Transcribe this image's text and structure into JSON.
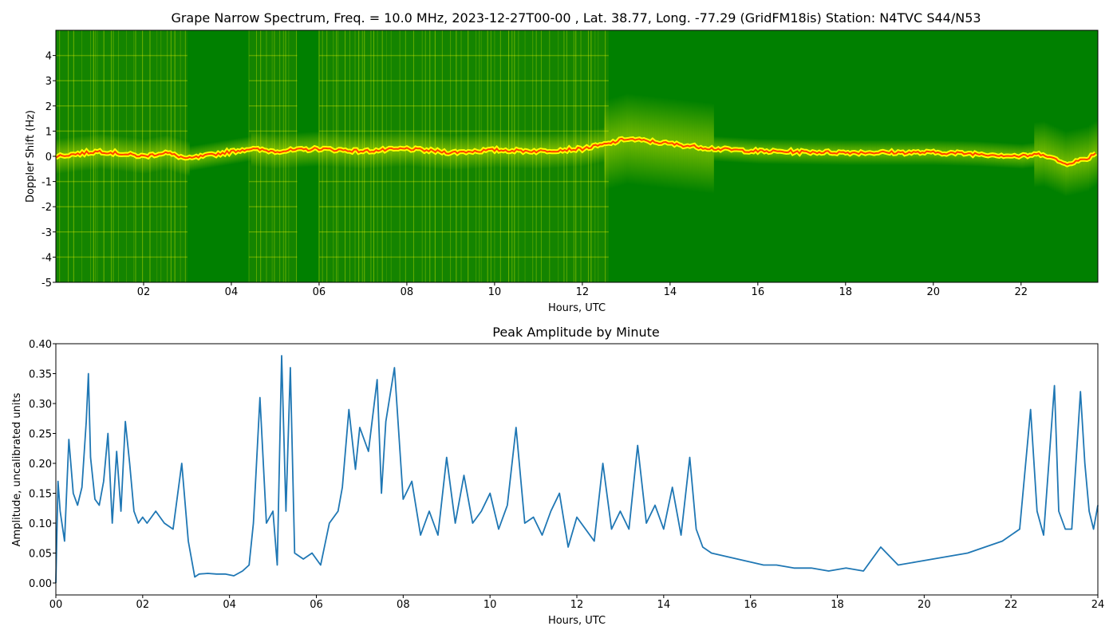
{
  "chart_data": [
    {
      "type": "heatmap",
      "title": "Grape Narrow Spectrum, Freq. = 10.0 MHz, 2023-12-27T00-00 , Lat.  38.77, Long. -77.29 (GridFM18is) Station: N4TVC S44/N53",
      "xlabel": "Hours, UTC",
      "ylabel": "Doppler Shift (Hz)",
      "xlim": [
        0,
        23.75
      ],
      "ylim": [
        -5,
        5
      ],
      "x_ticks": [
        "02",
        "04",
        "06",
        "08",
        "10",
        "12",
        "14",
        "16",
        "18",
        "20",
        "22"
      ],
      "x_tick_values": [
        2,
        4,
        6,
        8,
        10,
        12,
        14,
        16,
        18,
        20,
        22
      ],
      "y_ticks": [
        "-5",
        "-4",
        "-3",
        "-2",
        "-1",
        "0",
        "1",
        "2",
        "3",
        "4"
      ],
      "y_tick_values": [
        -5,
        -4,
        -3,
        -2,
        -1,
        0,
        1,
        2,
        3,
        4
      ],
      "colors": {
        "background": "#008000",
        "mid": "#ffff00",
        "peak": "#ff0000"
      },
      "carrier_trace": {
        "hours": [
          0,
          0.5,
          1,
          1.5,
          2,
          2.5,
          3,
          4.4,
          5,
          6,
          7,
          8,
          9,
          10,
          11,
          12,
          12.6,
          13,
          13.5,
          14,
          14.5,
          15,
          16,
          18,
          20,
          21,
          22,
          22.5,
          23,
          23.5,
          23.75
        ],
        "hz": [
          0.0,
          0.1,
          0.2,
          0.1,
          0.0,
          0.15,
          -0.1,
          0.3,
          0.2,
          0.3,
          0.2,
          0.3,
          0.15,
          0.25,
          0.2,
          0.3,
          0.5,
          0.7,
          0.6,
          0.5,
          0.4,
          0.3,
          0.2,
          0.15,
          0.15,
          0.1,
          0.0,
          0.1,
          -0.3,
          -0.1,
          0.2
        ]
      },
      "active_bands_hours": [
        [
          0,
          3.0
        ],
        [
          4.4,
          5.5
        ],
        [
          6.0,
          12.6
        ]
      ]
    },
    {
      "type": "line",
      "title": "Peak Amplitude by Minute",
      "xlabel": "Hours, UTC",
      "ylabel": "Amplitude, uncalibrated units",
      "xlim": [
        0,
        24
      ],
      "ylim": [
        -0.02,
        0.4
      ],
      "x_ticks": [
        "00",
        "02",
        "04",
        "06",
        "08",
        "10",
        "12",
        "14",
        "16",
        "18",
        "20",
        "22",
        "24"
      ],
      "x_tick_values": [
        0,
        2,
        4,
        6,
        8,
        10,
        12,
        14,
        16,
        18,
        20,
        22,
        24
      ],
      "y_ticks": [
        "0.00",
        "0.05",
        "0.10",
        "0.15",
        "0.20",
        "0.25",
        "0.30",
        "0.35",
        "0.40"
      ],
      "y_tick_values": [
        0,
        0.05,
        0.1,
        0.15,
        0.2,
        0.25,
        0.3,
        0.35,
        0.4
      ],
      "line_color": "#1f77b4",
      "series": [
        {
          "x": [
            0,
            0.05,
            0.1,
            0.2,
            0.3,
            0.4,
            0.5,
            0.6,
            0.7,
            0.75,
            0.8,
            0.9,
            1.0,
            1.1,
            1.2,
            1.3,
            1.4,
            1.5,
            1.6,
            1.7,
            1.8,
            1.9,
            2.0,
            2.1,
            2.3,
            2.5,
            2.7,
            2.9,
            3.05,
            3.2,
            3.3,
            3.5,
            3.7,
            3.9,
            4.1,
            4.3,
            4.45,
            4.55,
            4.7,
            4.85,
            5.0,
            5.1,
            5.2,
            5.3,
            5.4,
            5.5,
            5.7,
            5.9,
            6.1,
            6.3,
            6.5,
            6.6,
            6.75,
            6.9,
            7.0,
            7.2,
            7.4,
            7.5,
            7.6,
            7.8,
            8.0,
            8.2,
            8.4,
            8.6,
            8.8,
            9.0,
            9.2,
            9.4,
            9.6,
            9.8,
            10.0,
            10.2,
            10.4,
            10.6,
            10.8,
            11.0,
            11.2,
            11.4,
            11.6,
            11.8,
            12.0,
            12.2,
            12.4,
            12.6,
            12.8,
            13.0,
            13.2,
            13.4,
            13.6,
            13.8,
            14.0,
            14.2,
            14.4,
            14.6,
            14.75,
            14.9,
            15.1,
            15.4,
            15.7,
            16.0,
            16.3,
            16.6,
            17.0,
            17.4,
            17.8,
            18.2,
            18.6,
            19.0,
            19.4,
            19.8,
            20.2,
            20.6,
            21.0,
            21.4,
            21.8,
            22.2,
            22.45,
            22.6,
            22.75,
            23.0,
            23.1,
            23.25,
            23.4,
            23.6,
            23.7,
            23.8,
            23.9,
            24.0
          ],
          "y": [
            0.0,
            0.17,
            0.12,
            0.07,
            0.24,
            0.15,
            0.13,
            0.16,
            0.27,
            0.35,
            0.21,
            0.14,
            0.13,
            0.17,
            0.25,
            0.1,
            0.22,
            0.12,
            0.27,
            0.2,
            0.12,
            0.1,
            0.11,
            0.1,
            0.12,
            0.1,
            0.09,
            0.2,
            0.07,
            0.01,
            0.015,
            0.016,
            0.015,
            0.015,
            0.012,
            0.02,
            0.03,
            0.1,
            0.31,
            0.1,
            0.12,
            0.03,
            0.38,
            0.12,
            0.36,
            0.05,
            0.04,
            0.05,
            0.03,
            0.1,
            0.12,
            0.16,
            0.29,
            0.19,
            0.26,
            0.22,
            0.34,
            0.15,
            0.27,
            0.36,
            0.14,
            0.17,
            0.08,
            0.12,
            0.08,
            0.21,
            0.1,
            0.18,
            0.1,
            0.12,
            0.15,
            0.09,
            0.13,
            0.26,
            0.1,
            0.11,
            0.08,
            0.12,
            0.15,
            0.06,
            0.11,
            0.09,
            0.07,
            0.2,
            0.09,
            0.12,
            0.09,
            0.23,
            0.1,
            0.13,
            0.09,
            0.16,
            0.08,
            0.21,
            0.09,
            0.06,
            0.05,
            0.045,
            0.04,
            0.035,
            0.03,
            0.03,
            0.025,
            0.025,
            0.02,
            0.025,
            0.02,
            0.06,
            0.03,
            0.035,
            0.04,
            0.045,
            0.05,
            0.06,
            0.07,
            0.09,
            0.29,
            0.12,
            0.08,
            0.33,
            0.12,
            0.09,
            0.09,
            0.32,
            0.2,
            0.12,
            0.09,
            0.13
          ]
        }
      ]
    }
  ]
}
